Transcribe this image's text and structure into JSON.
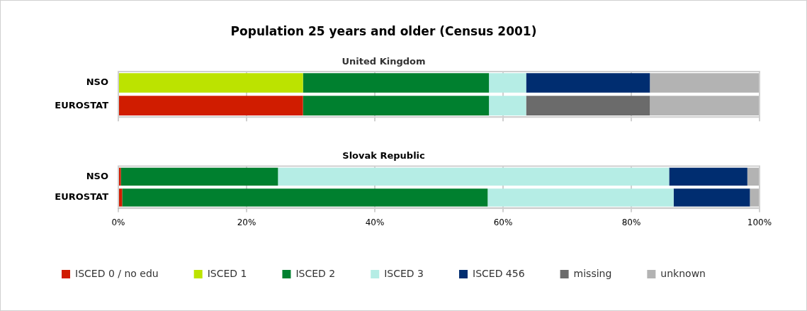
{
  "chart_data": [
    {
      "type": "bar",
      "orientation": "horizontal",
      "stacked": true,
      "title": "Population 25 years and older (Census 2001)",
      "subtitle": "United Kingdom",
      "categories": [
        "NSO",
        "EUROSTAT"
      ],
      "xlim": [
        0,
        100
      ],
      "xticks": [
        {
          "value": 0,
          "label": null
        },
        {
          "value": 20,
          "label": null
        },
        {
          "value": 40,
          "label": null
        },
        {
          "value": 60,
          "label": null
        },
        {
          "value": 80,
          "label": null
        },
        {
          "value": 100,
          "label": null
        }
      ],
      "grid": "x",
      "legend": false,
      "tick_labels": "y",
      "series": [
        {
          "color": "#d01c00",
          "values": [
            null,
            28.8
          ]
        },
        {
          "color": "#bce300",
          "values": [
            28.8,
            null
          ]
        },
        {
          "color": "#00802f",
          "values": [
            29.0,
            29.0
          ]
        },
        {
          "color": "#b5ede5",
          "values": [
            5.8,
            5.8
          ]
        },
        {
          "color": "#002d70",
          "values": [
            19.3,
            null
          ]
        },
        {
          "color": "#6b6b6b",
          "values": [
            null,
            19.3
          ]
        },
        {
          "color": "#b3b3b3",
          "values": [
            17.1,
            17.1
          ]
        }
      ]
    },
    {
      "type": "bar",
      "orientation": "horizontal",
      "stacked": true,
      "title": "Slovak Republic",
      "categories": [
        "NSO",
        "EUROSTAT"
      ],
      "xlim": [
        0,
        100
      ],
      "xticks": [
        {
          "value": 0,
          "label": "0%"
        },
        {
          "value": 20,
          "label": "20%"
        },
        {
          "value": 40,
          "label": "40%"
        },
        {
          "value": 60,
          "label": "60%"
        },
        {
          "value": 80,
          "label": "80%"
        },
        {
          "value": 100,
          "label": "100%"
        }
      ],
      "grid": "x",
      "legend": "bottom",
      "series": [
        {
          "name": "ISCED 0 / no edu",
          "color": "#d01c00",
          "values": [
            0.4,
            0.6
          ]
        },
        {
          "name": "ISCED 1",
          "color": "#bce300",
          "values": [
            null,
            null
          ]
        },
        {
          "name": "ISCED 2",
          "color": "#00802f",
          "values": [
            24.5,
            57.0
          ]
        },
        {
          "name": "ISCED 3",
          "color": "#b5ede5",
          "values": [
            61.0,
            29.0
          ]
        },
        {
          "name": "ISCED 456",
          "color": "#002d70",
          "values": [
            12.2,
            11.9
          ]
        },
        {
          "name": "missing",
          "color": "#6b6b6b",
          "values": [
            null,
            null
          ]
        },
        {
          "name": "unknown",
          "color": "#b3b3b3",
          "values": [
            1.9,
            1.5
          ]
        }
      ]
    }
  ]
}
